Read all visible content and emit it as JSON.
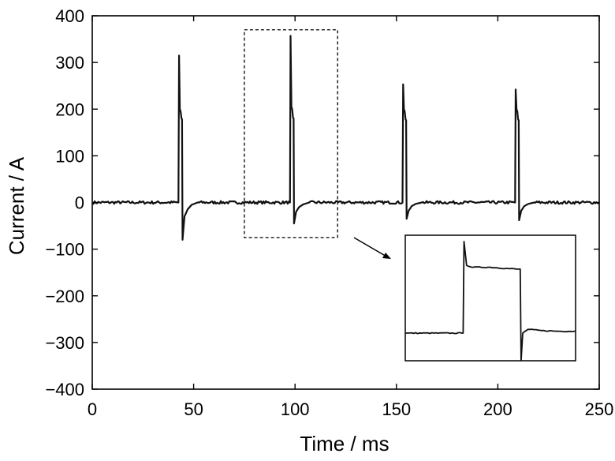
{
  "chart_data": {
    "type": "line",
    "xlabel": "Time / ms",
    "ylabel": "Current / A",
    "xlim": [
      0,
      250
    ],
    "ylim": [
      -400,
      400
    ],
    "x_ticks": [
      0,
      50,
      100,
      150,
      200,
      250
    ],
    "y_ticks": [
      400,
      300,
      200,
      100,
      0,
      -100,
      -200,
      -300,
      -400
    ],
    "x_tick_labels": [
      "0",
      "50",
      "100",
      "150",
      "200",
      "250"
    ],
    "y_tick_labels": [
      "400",
      "300",
      "200",
      "100",
      "0",
      "−100",
      "−200",
      "−300",
      "−400"
    ],
    "grid": false,
    "line_color": "#111111",
    "series": [
      {
        "x": [
          0,
          42.5,
          42.8,
          43.2,
          43.6,
          44.0,
          44.3,
          44.5,
          45.5,
          47.0,
          49.0,
          52.0,
          97.5,
          97.8,
          98.2,
          98.6,
          99.0,
          99.3,
          99.5,
          100.5,
          102.0,
          104.0,
          107.0,
          153.0,
          153.3,
          153.7,
          154.1,
          154.5,
          154.8,
          155.0,
          156.0,
          157.5,
          159.5,
          162.5,
          208.5,
          208.8,
          209.2,
          209.6,
          210.0,
          210.3,
          210.5,
          211.5,
          213.0,
          215.0,
          218.0,
          250
        ],
        "y": [
          0,
          0,
          315,
          200,
          195,
          180,
          178,
          -80,
          -30,
          -15,
          -5,
          0,
          0,
          357,
          205,
          200,
          182,
          180,
          -45,
          -20,
          -10,
          -4,
          0,
          0,
          253,
          200,
          195,
          178,
          176,
          -35,
          -18,
          -8,
          -3,
          0,
          0,
          242,
          200,
          195,
          178,
          176,
          -38,
          -18,
          -8,
          -3,
          0,
          0
        ]
      }
    ],
    "highlight_box": {
      "x_range": [
        75,
        121
      ],
      "y_range": [
        -75,
        370
      ]
    },
    "inset": {
      "x": [
        0,
        0.33,
        0.34,
        0.345,
        0.36,
        0.4,
        0.5,
        0.6,
        0.66,
        0.675,
        0.68,
        0.69,
        0.72,
        0.8,
        0.9,
        1.0
      ],
      "y": [
        0.22,
        0.22,
        0.22,
        0.95,
        0.76,
        0.745,
        0.745,
        0.735,
        0.73,
        0.73,
        0.0,
        0.22,
        0.25,
        0.24,
        0.235,
        0.235
      ]
    }
  }
}
